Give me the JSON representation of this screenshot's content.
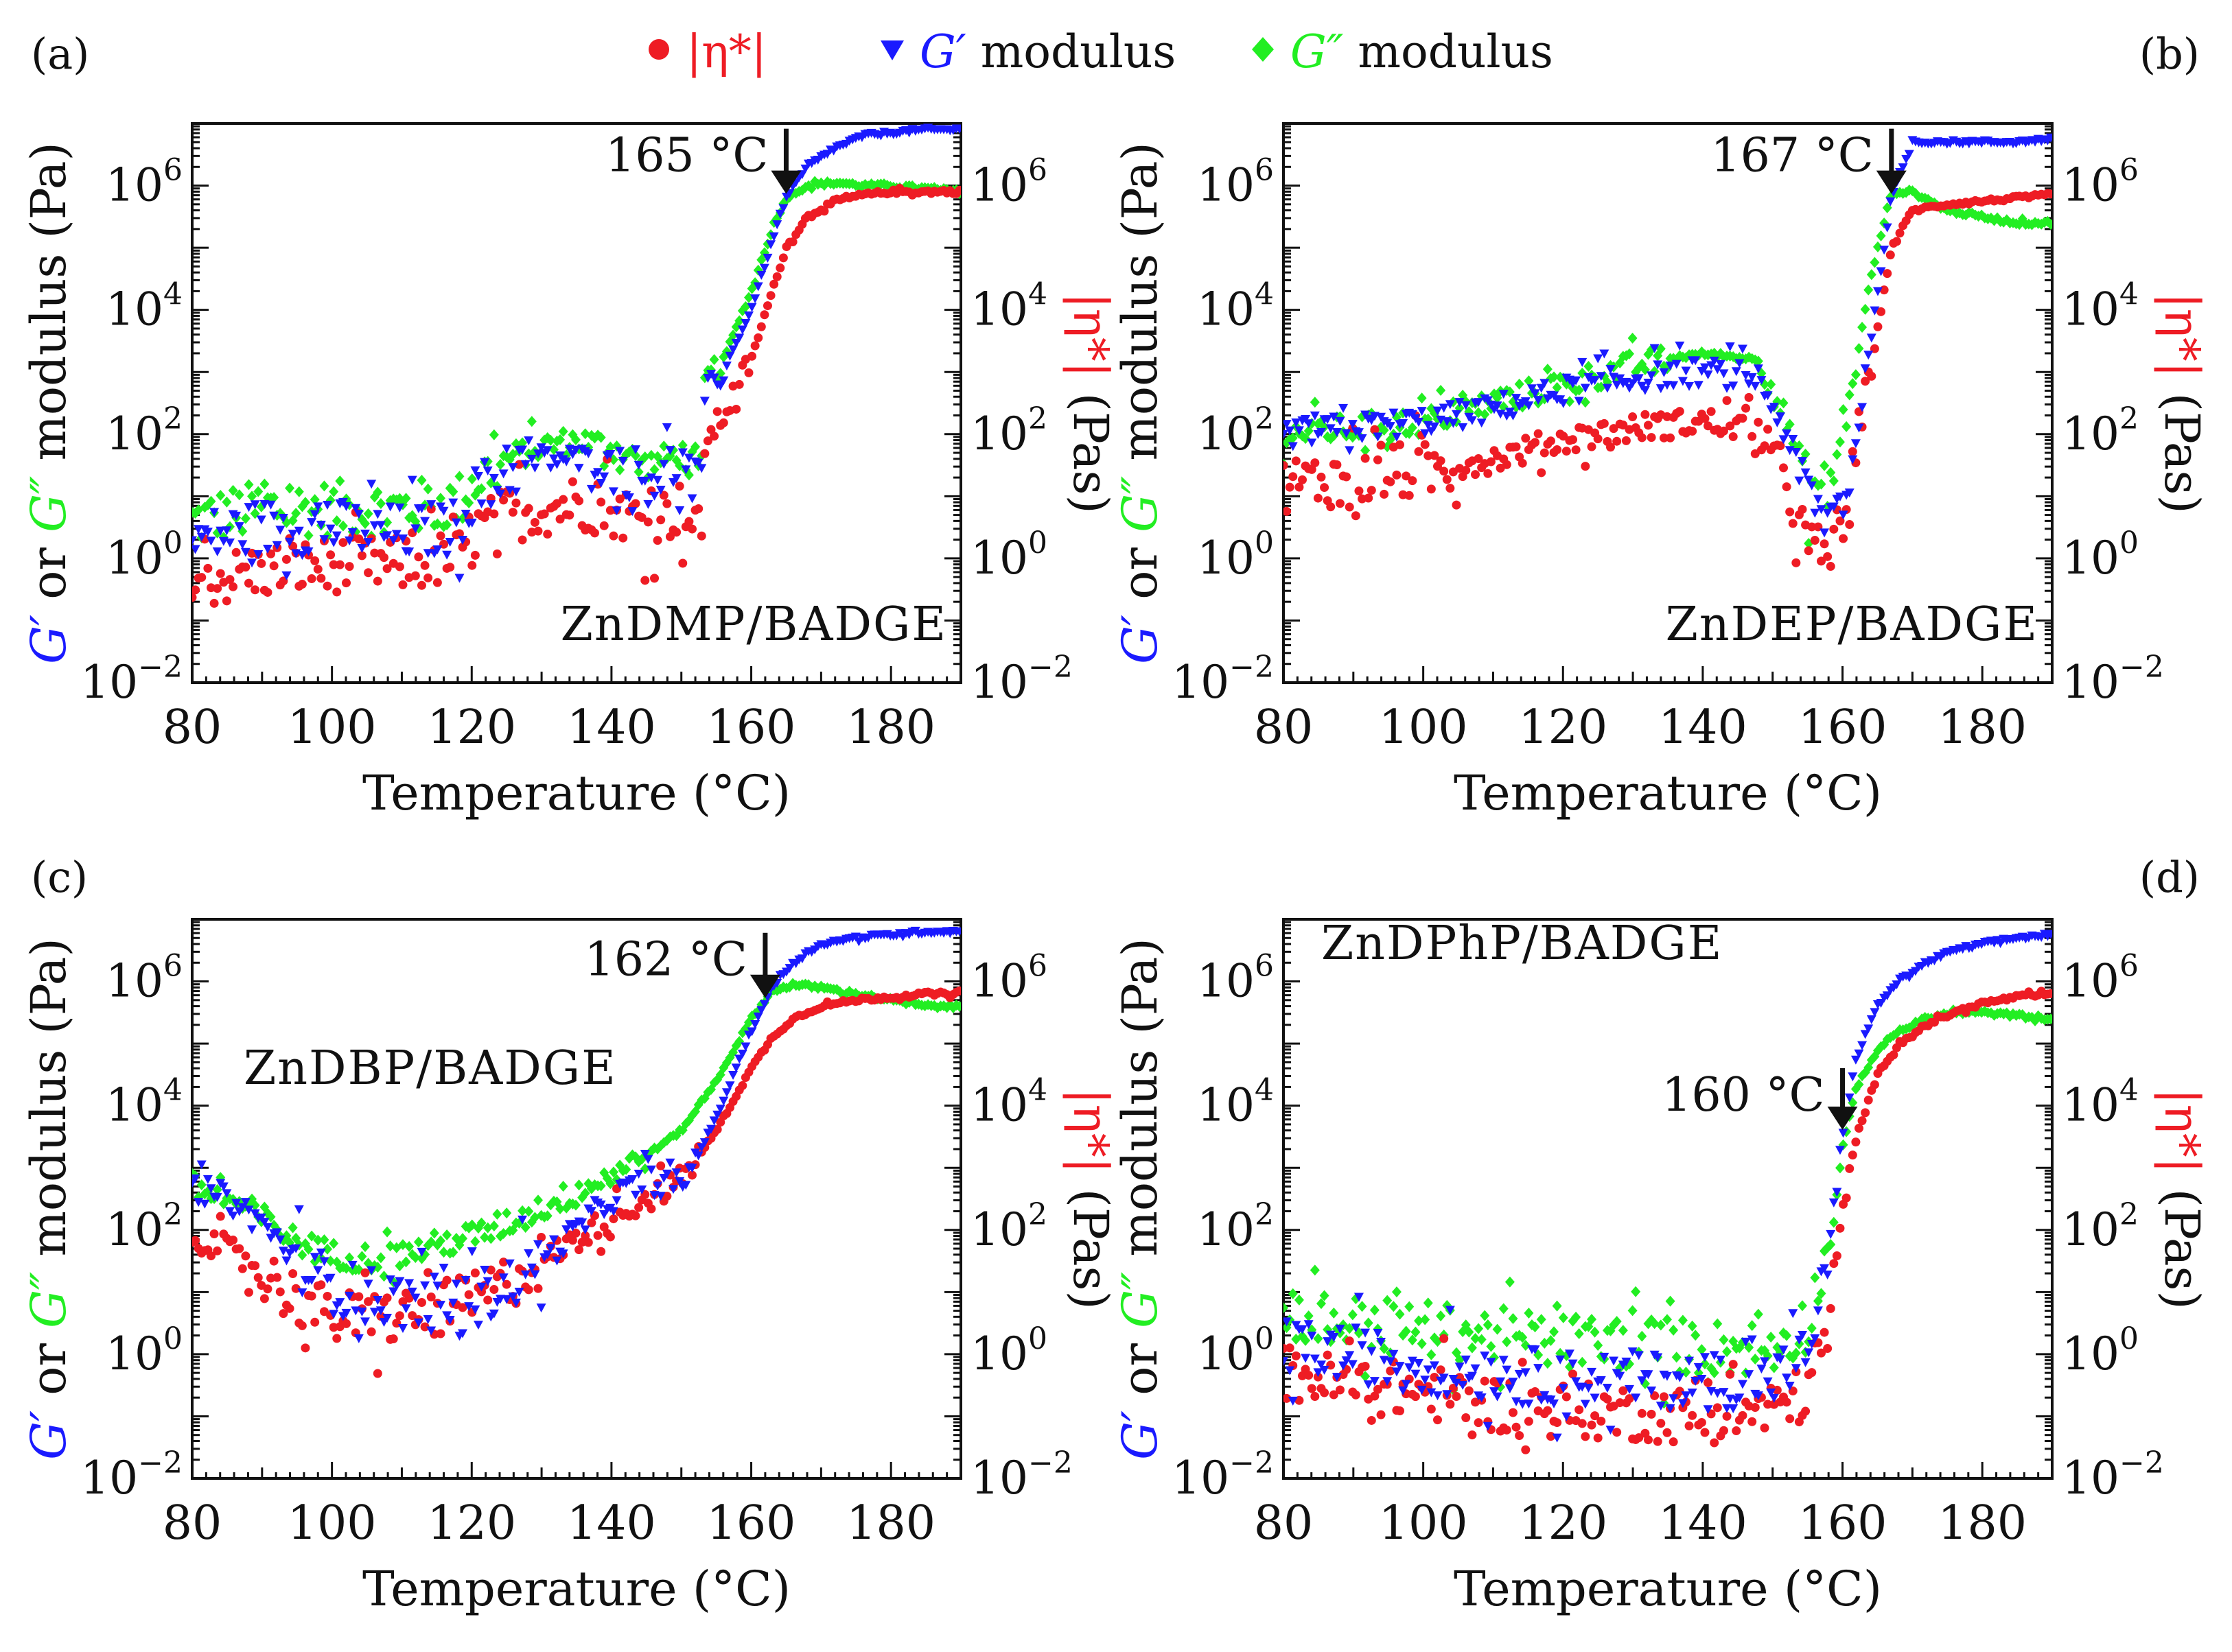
{
  "legend": {
    "entries": [
      {
        "name": "|η*|",
        "color": "#ee1c24",
        "marker": "circle"
      },
      {
        "name": "G′ modulus",
        "color": "#1a1aff",
        "marker": "triangle-down",
        "italic_prefix": "G′",
        "suffix": " modulus"
      },
      {
        "name": "G″ modulus",
        "color": "#22ee22",
        "marker": "diamond",
        "italic_prefix": "G″",
        "suffix": " modulus"
      }
    ]
  },
  "axis_text": {
    "xlabel": "Temperature (°C)",
    "ylabel_left_parts": [
      "G′",
      " or ",
      "G″",
      " modulus (Pa)"
    ],
    "ylabel_right_parts": [
      "|η*|",
      " (Pas)"
    ]
  },
  "colors": {
    "eta": "#ee1c24",
    "gp": "#1a1aff",
    "gpp": "#22ee22"
  },
  "chart_data": [
    {
      "type": "scatter",
      "panel": "(a)",
      "title": "ZnDMP/BADGE",
      "annotation": "165 °C",
      "arrow_x": 165,
      "xlabel": "Temperature (°C)",
      "xlim": [
        80,
        190
      ],
      "xticks": [
        80,
        100,
        120,
        140,
        160,
        180
      ],
      "ylim_log10": [
        -2,
        7
      ],
      "yticks_exp": [
        -2,
        0,
        2,
        4,
        6
      ],
      "yscale": "log",
      "y2scale": "log",
      "series": [
        {
          "name": "G′ modulus",
          "color": "#1a1aff",
          "x": [
            80,
            90,
            100,
            110,
            118,
            120,
            125,
            130,
            135,
            140,
            145,
            150,
            153,
            153.1,
            156,
            160,
            163,
            165,
            168,
            172,
            176,
            180,
            185,
            190
          ],
          "log_y": [
            0.3,
            0.5,
            0.5,
            0.4,
            0.5,
            1.0,
            1.4,
            1.6,
            1.6,
            1.5,
            1.3,
            1.5,
            1.0,
            2.6,
            3.0,
            4.0,
            5.1,
            5.8,
            6.3,
            6.6,
            6.8,
            6.85,
            6.9,
            6.9
          ]
        },
        {
          "name": "G″ modulus",
          "color": "#22ee22",
          "x": [
            80,
            90,
            100,
            110,
            118,
            120,
            125,
            130,
            135,
            140,
            145,
            150,
            153,
            153.1,
            156,
            160,
            163,
            165,
            168,
            172,
            176,
            180,
            185,
            190
          ],
          "log_y": [
            0.6,
            0.8,
            0.8,
            0.8,
            0.9,
            1.2,
            1.6,
            1.8,
            1.9,
            1.8,
            1.5,
            1.7,
            1.2,
            2.8,
            3.2,
            4.3,
            5.3,
            5.8,
            6.0,
            6.05,
            6.0,
            6.0,
            5.95,
            5.9
          ]
        },
        {
          "name": "|η*|",
          "color": "#ee1c24",
          "x": [
            80,
            90,
            100,
            110,
            118,
            120,
            125,
            130,
            135,
            140,
            145,
            150,
            153,
            153.1,
            156,
            160,
            163,
            165,
            168,
            172,
            176,
            180,
            185,
            190
          ],
          "log_y": [
            -0.4,
            -0.2,
            -0.1,
            -0.1,
            0.0,
            0.4,
            0.7,
            0.8,
            0.9,
            0.8,
            0.6,
            0.8,
            0.3,
            1.8,
            2.3,
            3.2,
            4.3,
            5.0,
            5.5,
            5.75,
            5.85,
            5.9,
            5.9,
            5.9
          ]
        }
      ]
    },
    {
      "type": "scatter",
      "panel": "(b)",
      "title": "ZnDEP/BADGE",
      "annotation": "167 °C",
      "arrow_x": 167,
      "xlabel": "Temperature (°C)",
      "xlim": [
        80,
        190
      ],
      "xticks": [
        80,
        100,
        120,
        140,
        160,
        180
      ],
      "ylim_log10": [
        -2,
        7
      ],
      "yticks_exp": [
        -2,
        0,
        2,
        4,
        6
      ],
      "yscale": "log",
      "y2scale": "log",
      "series": [
        {
          "name": "G′ modulus",
          "color": "#1a1aff",
          "x": [
            80,
            90,
            100,
            110,
            120,
            130,
            140,
            148,
            152,
            155,
            158,
            161,
            164,
            167,
            170,
            175,
            180,
            185,
            190
          ],
          "log_y": [
            2.0,
            2.1,
            2.2,
            2.4,
            2.7,
            2.9,
            3.0,
            2.9,
            2.0,
            1.0,
            0.6,
            1.2,
            3.5,
            5.8,
            6.7,
            6.7,
            6.7,
            6.7,
            6.75
          ]
        },
        {
          "name": "G″ modulus",
          "color": "#22ee22",
          "x": [
            80,
            90,
            100,
            110,
            120,
            130,
            140,
            148,
            152,
            155,
            158,
            161,
            164,
            167,
            170,
            175,
            180,
            185,
            190
          ],
          "log_y": [
            2.0,
            2.1,
            2.2,
            2.5,
            2.8,
            3.1,
            3.3,
            3.2,
            2.2,
            1.2,
            1.1,
            2.5,
            4.5,
            5.9,
            5.9,
            5.6,
            5.5,
            5.4,
            5.4
          ]
        },
        {
          "name": "|η*|",
          "color": "#ee1c24",
          "x": [
            80,
            90,
            100,
            110,
            120,
            130,
            140,
            148,
            152,
            155,
            158,
            161,
            164,
            167,
            170,
            175,
            180,
            185,
            190
          ],
          "log_y": [
            1.2,
            1.3,
            1.4,
            1.6,
            1.9,
            2.1,
            2.2,
            2.1,
            1.2,
            0.2,
            0.0,
            1.0,
            3.0,
            5.0,
            5.6,
            5.7,
            5.75,
            5.8,
            5.85
          ]
        }
      ]
    },
    {
      "type": "scatter",
      "panel": "(c)",
      "title": "ZnDBP/BADGE",
      "annotation": "162 °C",
      "arrow_x": 162,
      "xlabel": "Temperature (°C)",
      "xlim": [
        80,
        190
      ],
      "xticks": [
        80,
        100,
        120,
        140,
        160,
        180
      ],
      "ylim_log10": [
        -2,
        7
      ],
      "yticks_exp": [
        -2,
        0,
        2,
        4,
        6
      ],
      "yscale": "log",
      "y2scale": "log",
      "series": [
        {
          "name": "G′ modulus",
          "color": "#1a1aff",
          "x": [
            80,
            85,
            90,
            95,
            100,
            105,
            110,
            115,
            120,
            125,
            130,
            135,
            140,
            145,
            150,
            155,
            160,
            163,
            166,
            170,
            175,
            180,
            185,
            190
          ],
          "log_y": [
            2.7,
            2.5,
            2.1,
            1.5,
            1.1,
            0.95,
            0.85,
            0.8,
            0.85,
            1.1,
            1.5,
            2.0,
            2.5,
            2.8,
            2.7,
            3.8,
            5.2,
            5.9,
            6.3,
            6.6,
            6.7,
            6.75,
            6.8,
            6.8
          ]
        },
        {
          "name": "G″ modulus",
          "color": "#22ee22",
          "x": [
            80,
            85,
            90,
            95,
            100,
            105,
            110,
            115,
            120,
            125,
            130,
            135,
            140,
            145,
            150,
            155,
            160,
            163,
            166,
            170,
            175,
            180,
            185,
            190
          ],
          "log_y": [
            2.7,
            2.5,
            2.2,
            1.8,
            1.6,
            1.55,
            1.6,
            1.75,
            1.9,
            2.1,
            2.35,
            2.6,
            2.9,
            3.2,
            3.6,
            4.4,
            5.4,
            5.85,
            5.95,
            5.9,
            5.8,
            5.7,
            5.6,
            5.6
          ]
        },
        {
          "name": "|η*|",
          "color": "#ee1c24",
          "x": [
            80,
            85,
            90,
            95,
            100,
            105,
            110,
            115,
            120,
            125,
            130,
            135,
            140,
            145,
            150,
            155,
            160,
            163,
            166,
            170,
            175,
            180,
            185,
            190
          ],
          "log_y": [
            1.9,
            1.7,
            1.3,
            0.9,
            0.6,
            0.55,
            0.6,
            0.7,
            0.85,
            1.15,
            1.5,
            1.85,
            2.2,
            2.5,
            2.8,
            3.6,
            4.6,
            5.1,
            5.4,
            5.6,
            5.7,
            5.75,
            5.8,
            5.8
          ]
        }
      ]
    },
    {
      "type": "scatter",
      "panel": "(d)",
      "title": "ZnDPhP/BADGE",
      "annotation": "160 °C",
      "arrow_x": 160,
      "xlabel": "Temperature (°C)",
      "xlim": [
        80,
        190
      ],
      "xticks": [
        80,
        100,
        120,
        140,
        160,
        180
      ],
      "ylim_log10": [
        -2,
        7
      ],
      "yticks_exp": [
        -2,
        0,
        2,
        4,
        6
      ],
      "yscale": "log",
      "y2scale": "log",
      "series": [
        {
          "name": "G′ modulus",
          "color": "#1a1aff",
          "x": [
            80,
            90,
            100,
            110,
            120,
            130,
            140,
            150,
            155,
            158,
            160,
            162,
            165,
            168,
            172,
            176,
            180,
            185,
            190
          ],
          "log_y": [
            0.1,
            0.0,
            -0.2,
            -0.3,
            -0.4,
            -0.4,
            -0.45,
            -0.4,
            0.0,
            1.5,
            3.5,
            4.8,
            5.6,
            6.0,
            6.3,
            6.5,
            6.6,
            6.7,
            6.75
          ]
        },
        {
          "name": "G″ modulus",
          "color": "#22ee22",
          "x": [
            80,
            90,
            100,
            110,
            120,
            130,
            140,
            150,
            155,
            158,
            160,
            162,
            165,
            168,
            172,
            176,
            180,
            185,
            190
          ],
          "log_y": [
            0.7,
            0.5,
            0.4,
            0.3,
            0.2,
            0.2,
            0.1,
            0.1,
            0.5,
            1.7,
            3.3,
            4.3,
            4.9,
            5.2,
            5.4,
            5.5,
            5.5,
            5.45,
            5.4
          ]
        },
        {
          "name": "|η*|",
          "color": "#ee1c24",
          "x": [
            80,
            90,
            100,
            110,
            120,
            130,
            140,
            150,
            155,
            158,
            160,
            162,
            165,
            168,
            172,
            176,
            180,
            185,
            190
          ],
          "log_y": [
            -0.3,
            -0.5,
            -0.6,
            -0.8,
            -0.9,
            -0.95,
            -1.0,
            -0.9,
            -0.6,
            0.5,
            2.2,
            3.5,
            4.5,
            5.0,
            5.3,
            5.5,
            5.65,
            5.75,
            5.8
          ]
        }
      ]
    }
  ]
}
